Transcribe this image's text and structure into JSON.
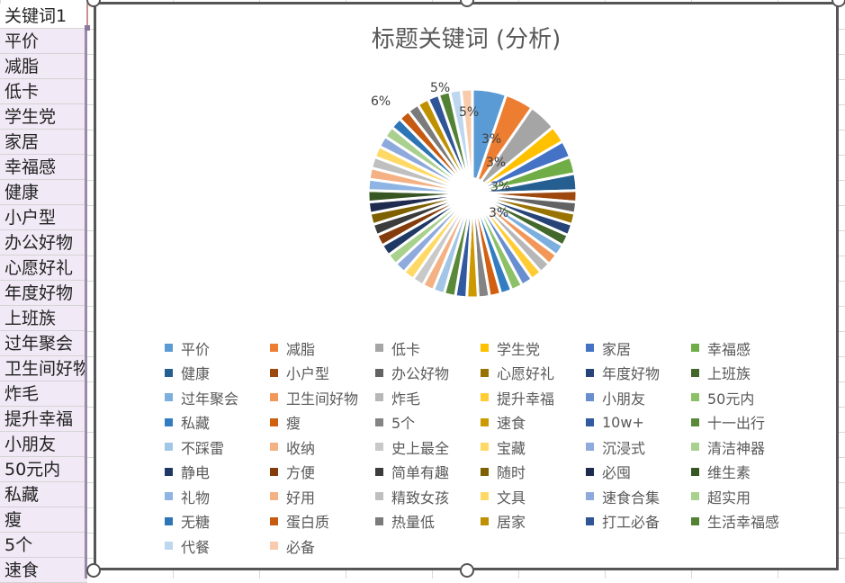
{
  "spreadsheet": {
    "column_a_header": "关键词1",
    "column_a_values": [
      "平价",
      "减脂",
      "低卡",
      "学生党",
      "家居",
      "幸福感",
      "健康",
      "小户型",
      "办公好物",
      "心愿好礼",
      "年度好物",
      "上班族",
      "过年聚会",
      "卫生间好物",
      "炸毛",
      "提升幸福",
      "小朋友",
      "50元内",
      "私藏",
      "瘦",
      "5个",
      "速食"
    ]
  },
  "chart_data": {
    "type": "pie",
    "title": "标题关键词 (分析)",
    "legend_position": "bottom",
    "categories": [
      "平价",
      "减脂",
      "低卡",
      "学生党",
      "家居",
      "幸福感",
      "健康",
      "小户型",
      "办公好物",
      "心愿好礼",
      "年度好物",
      "上班族",
      "过年聚会",
      "卫生间好物",
      "炸毛",
      "提升幸福",
      "小朋友",
      "50元内",
      "私藏",
      "瘦",
      "5个",
      "速食",
      "10w+",
      "十一出行",
      "不踩雷",
      "收纳",
      "史上最全",
      "宝藏",
      "沉浸式",
      "清洁神器",
      "静电",
      "方便",
      "简单有趣",
      "随时",
      "必囤",
      "维生素",
      "礼物",
      "好用",
      "精致女孩",
      "文具",
      "速食合集",
      "超实用",
      "无糖",
      "蛋白质",
      "热量低",
      "居家",
      "打工必备",
      "生活幸福感",
      "代餐",
      "必备"
    ],
    "values": [
      6,
      5,
      5,
      3,
      3,
      3,
      3,
      2,
      2,
      2,
      2,
      2,
      2,
      2,
      2,
      2,
      2,
      2,
      2,
      2,
      2,
      2,
      2,
      2,
      2,
      2,
      2,
      2,
      2,
      2,
      2,
      2,
      2,
      2,
      2,
      2,
      2,
      2,
      2,
      2,
      2,
      2,
      2,
      2,
      2,
      2,
      2,
      2,
      2,
      2
    ],
    "data_labels": [
      "6%",
      "5%",
      "5%",
      "3%",
      "3%",
      "3%",
      "3%"
    ],
    "colors": [
      "#5b9bd5",
      "#ed7d31",
      "#a5a5a5",
      "#ffc000",
      "#4472c4",
      "#70ad47",
      "#255e91",
      "#9e480e",
      "#636363",
      "#997300",
      "#264478",
      "#43682b",
      "#7cafdd",
      "#f1975a",
      "#b7b7b7",
      "#ffcd33",
      "#698ed0",
      "#8cc168",
      "#327dc2",
      "#d26012",
      "#848484",
      "#cc9a00",
      "#335aa1",
      "#5a8a39",
      "#a3c6e6",
      "#f4b183",
      "#c9c9c9",
      "#ffd966",
      "#8faadc",
      "#a9d18e",
      "#1f3864",
      "#843c0c",
      "#3b3b3b",
      "#7f6000",
      "#1f2a4f",
      "#375623",
      "#8eb4e3",
      "#f4b183",
      "#bfbfbf",
      "#ffd966",
      "#8ea9db",
      "#a9d08e",
      "#2e75b6",
      "#c55a11",
      "#7b7b7b",
      "#bf9000",
      "#2f5597",
      "#548235",
      "#bdd7ee",
      "#f8cbad"
    ]
  }
}
